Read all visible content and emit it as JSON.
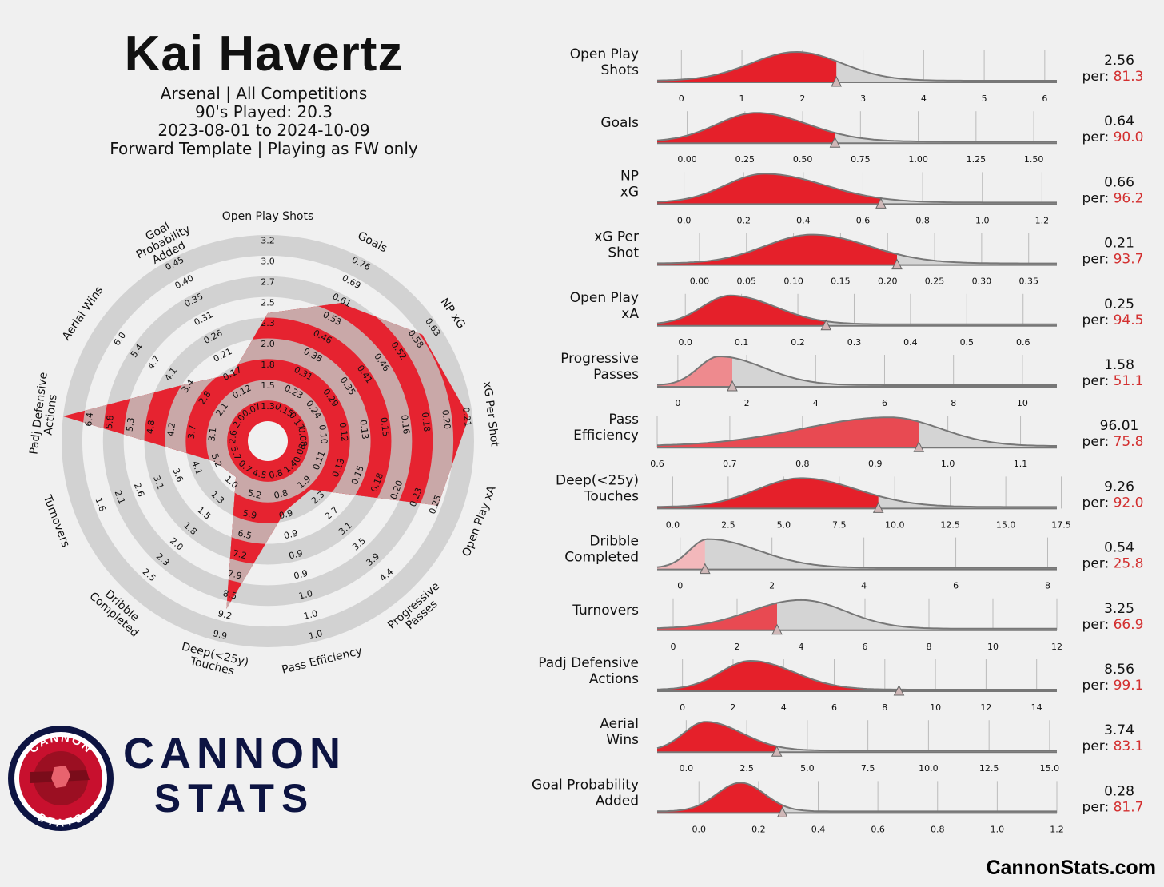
{
  "header": {
    "player": "Kai Havertz",
    "team_line": "Arsenal | All Competitions",
    "minutes_line": "90's Played: 20.3",
    "date_line": "2023-08-01 to 2024-10-09",
    "template_line": "Forward Template | Playing as FW only"
  },
  "brand": {
    "logo_top": "CANNON",
    "logo_bottom": "STATS",
    "line1": "CANNON",
    "line2": "STATS",
    "footer": "CannonStats.com",
    "navy": "#0d1442",
    "red": "#c8102e"
  },
  "colors": {
    "fill_red": "#e5202a",
    "ring_grey": "#d0d0d0",
    "band_red": "#e62330",
    "value_red": "#d32f2f"
  },
  "chart_data": [
    {
      "type": "radar",
      "metrics": [
        {
          "name": "Open Play Shots",
          "value": 2.56,
          "ticks": [
            "1.3",
            "1.5",
            "1.8",
            "2.0",
            "2.3",
            "2.5",
            "2.7",
            "3.0",
            "3.2"
          ]
        },
        {
          "name": "Goals",
          "value": 0.64,
          "ticks": [
            "0.15",
            "0.23",
            "0.31",
            "0.38",
            "0.46",
            "0.53",
            "0.61",
            "0.69",
            "0.76"
          ]
        },
        {
          "name": "NP xG",
          "value": 0.66,
          "ticks": [
            "0.17",
            "0.24",
            "0.29",
            "0.35",
            "0.41",
            "0.46",
            "0.52",
            "0.58",
            "0.63"
          ]
        },
        {
          "name": "xG Per Shot",
          "value": 0.21,
          "ticks": [
            "0.08",
            "0.10",
            "0.12",
            "0.13",
            "0.15",
            "0.16",
            "0.18",
            "0.20",
            "0.21"
          ]
        },
        {
          "name": "Open Play xA",
          "value": 0.25,
          "ticks": [
            "0.08",
            "0.11",
            "0.13",
            "0.15",
            "0.18",
            "0.20",
            "0.23",
            "0.25"
          ]
        },
        {
          "name": "Progressive Passes",
          "value": 1.58,
          "ticks": [
            "1.4",
            "1.9",
            "2.3",
            "2.7",
            "3.1",
            "3.5",
            "3.9",
            "4.4"
          ]
        },
        {
          "name": "Pass Efficiency",
          "value": 0.96,
          "ticks": [
            "0.8",
            "0.8",
            "0.9",
            "0.9",
            "0.9",
            "0.9",
            "1.0",
            "1.0",
            "1.0"
          ]
        },
        {
          "name": "Deep(<25y) Touches",
          "value": 9.26,
          "ticks": [
            "4.5",
            "5.2",
            "5.9",
            "6.5",
            "7.2",
            "7.9",
            "8.5",
            "9.2",
            "9.9"
          ]
        },
        {
          "name": "Dribble Completed",
          "value": 0.54,
          "ticks": [
            "0.7",
            "1.0",
            "1.3",
            "1.5",
            "1.8",
            "2.0",
            "2.3",
            "2.5"
          ]
        },
        {
          "name": "Turnovers",
          "value": 3.25,
          "ticks": [
            "5.7",
            "5.2",
            "4.1",
            "3.6",
            "3.1",
            "2.6",
            "2.1",
            "1.6"
          ]
        },
        {
          "name": "Padj Defensive Actions",
          "value": 8.56,
          "ticks": [
            "2.6",
            "3.1",
            "3.7",
            "4.2",
            "4.8",
            "5.3",
            "5.8",
            "6.4"
          ]
        },
        {
          "name": "Aerial Wins",
          "value": 3.74,
          "ticks": [
            "2.0",
            "2.1",
            "2.8",
            "3.4",
            "4.1",
            "4.7",
            "5.4",
            "6.0"
          ]
        },
        {
          "name": "Goal Probability Added",
          "value": 0.28,
          "ticks": [
            "0.07",
            "0.12",
            "0.17",
            "0.21",
            "0.26",
            "0.31",
            "0.35",
            "0.40",
            "0.45"
          ]
        }
      ]
    },
    {
      "type": "area",
      "description_series": "distribution rows",
      "rows": [
        {
          "label": "Open Play\nShots",
          "value": "2.56",
          "per": "81.3",
          "ticks": [
            "0",
            "1",
            "2",
            "3",
            "4",
            "5",
            "6"
          ],
          "xmin": -0.4,
          "xmax": 6.2,
          "mode": 1.9,
          "sl": 0.75,
          "sr": 0.75,
          "x": 2.56,
          "pct": 81.3
        },
        {
          "label": "Goals",
          "value": "0.64",
          "per": "90.0",
          "ticks": [
            "0.00",
            "0.25",
            "0.50",
            "0.75",
            "1.00",
            "1.25",
            "1.50"
          ],
          "xmin": -0.13,
          "xmax": 1.6,
          "mode": 0.3,
          "sl": 0.17,
          "sr": 0.22,
          "x": 0.64,
          "pct": 90.0
        },
        {
          "label": "NP\nxG",
          "value": "0.66",
          "per": "96.2",
          "ticks": [
            "0.0",
            "0.2",
            "0.4",
            "0.6",
            "0.8",
            "1.0",
            "1.2"
          ],
          "xmin": -0.09,
          "xmax": 1.25,
          "mode": 0.27,
          "sl": 0.13,
          "sr": 0.2,
          "x": 0.66,
          "pct": 96.2
        },
        {
          "label": "xG Per\nShot",
          "value": "0.21",
          "per": "93.7",
          "ticks": [
            "0.00",
            "0.05",
            "0.10",
            "0.15",
            "0.20",
            "0.25",
            "0.30",
            "0.35"
          ],
          "xmin": -0.045,
          "xmax": 0.38,
          "mode": 0.12,
          "sl": 0.05,
          "sr": 0.06,
          "x": 0.21,
          "pct": 93.7
        },
        {
          "label": "Open Play\nxA",
          "value": "0.25",
          "per": "94.5",
          "ticks": [
            "0.0",
            "0.1",
            "0.2",
            "0.3",
            "0.4",
            "0.5",
            "0.6"
          ],
          "xmin": -0.05,
          "xmax": 0.66,
          "mode": 0.08,
          "sl": 0.05,
          "sr": 0.08,
          "x": 0.25,
          "pct": 94.5
        },
        {
          "label": "Progressive\nPasses",
          "value": "1.58",
          "per": "51.1",
          "ticks": [
            "0",
            "2",
            "4",
            "6",
            "8",
            "10"
          ],
          "xmin": -0.6,
          "xmax": 11,
          "mode": 1.2,
          "sl": 0.6,
          "sr": 1.3,
          "x": 1.58,
          "pct": 51.1
        },
        {
          "label": "Pass\nEfficiency",
          "value": "96.01",
          "per": "75.8",
          "ticks": [
            "0.6",
            "0.7",
            "0.8",
            "0.9",
            "1.0",
            "1.1"
          ],
          "xmin": 0.6,
          "xmax": 1.15,
          "mode": 0.92,
          "sl": 0.12,
          "sr": 0.07,
          "x": 0.96,
          "pct": 75.8
        },
        {
          "label": "Deep(<25y)\nTouches",
          "value": "9.26",
          "per": "92.0",
          "ticks": [
            "0.0",
            "2.5",
            "5.0",
            "7.5",
            "10.0",
            "12.5",
            "15.0",
            "17.5"
          ],
          "xmin": -0.7,
          "xmax": 17.3,
          "mode": 5.8,
          "sl": 2.0,
          "sr": 2.5,
          "x": 9.26,
          "pct": 92.0
        },
        {
          "label": "Dribble\nCompleted",
          "value": "0.54",
          "per": "25.8",
          "ticks": [
            "0",
            "2",
            "4",
            "6",
            "8"
          ],
          "xmin": -0.5,
          "xmax": 8.2,
          "mode": 0.6,
          "sl": 0.4,
          "sr": 1.1,
          "x": 0.54,
          "pct": 25.8
        },
        {
          "label": "Turnovers",
          "value": "3.25",
          "per": "66.9",
          "ticks": [
            "0",
            "2",
            "4",
            "6",
            "8",
            "10",
            "12"
          ],
          "xmin": -0.5,
          "xmax": 12,
          "mode": 4.0,
          "sl": 1.6,
          "sr": 1.4,
          "x": 3.25,
          "pct": 66.9
        },
        {
          "label": "Padj Defensive\nActions",
          "value": "8.56",
          "per": "99.1",
          "ticks": [
            "0",
            "2",
            "4",
            "6",
            "8",
            "10",
            "12",
            "14"
          ],
          "xmin": -1,
          "xmax": 14.8,
          "mode": 2.7,
          "sl": 1.2,
          "sr": 1.7,
          "x": 8.56,
          "pct": 99.1
        },
        {
          "label": "Aerial\nWins",
          "value": "3.74",
          "per": "83.1",
          "ticks": [
            "0.0",
            "2.5",
            "5.0",
            "7.5",
            "10.0",
            "12.5",
            "15.0"
          ],
          "xmin": -1.2,
          "xmax": 15.3,
          "mode": 0.8,
          "sl": 0.9,
          "sr": 1.5,
          "x": 3.74,
          "pct": 83.1
        },
        {
          "label": "Goal Probability\nAdded",
          "value": "0.28",
          "per": "81.7",
          "ticks": [
            "0.0",
            "0.2",
            "0.4",
            "0.6",
            "0.8",
            "1.0",
            "1.2"
          ],
          "xmin": -0.14,
          "xmax": 1.2,
          "mode": 0.14,
          "sl": 0.08,
          "sr": 0.08,
          "x": 0.28,
          "pct": 81.7
        }
      ],
      "per_label": "per:"
    }
  ]
}
